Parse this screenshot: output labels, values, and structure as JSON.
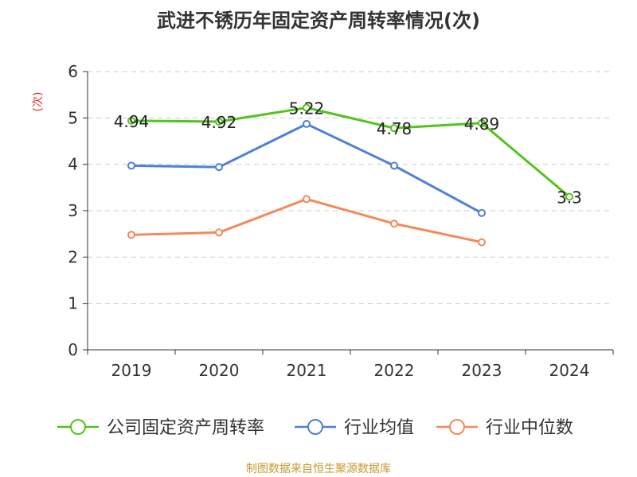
{
  "chart_data": {
    "type": "line",
    "title": "武进不锈历年固定资产周转率情况(次)",
    "ylabel": "(次)",
    "categories": [
      "2019",
      "2020",
      "2021",
      "2022",
      "2023",
      "2024"
    ],
    "ylim": [
      0,
      6
    ],
    "yticks": [
      "0",
      "1",
      "2",
      "3",
      "4",
      "5",
      "6"
    ],
    "grid": true,
    "legend_position": "bottom",
    "series": [
      {
        "name": "公司固定资产周转率",
        "color": "#52c41a",
        "values": [
          4.94,
          4.92,
          5.22,
          4.78,
          4.89,
          3.3
        ],
        "labels": [
          "4.94",
          "4.92",
          "5.22",
          "4.78",
          "4.89",
          "3.3"
        ]
      },
      {
        "name": "行业均值",
        "color": "#4e7fd9",
        "values": [
          3.97,
          3.94,
          4.87,
          3.97,
          2.95,
          null
        ]
      },
      {
        "name": "行业中位数",
        "color": "#f4895b",
        "values": [
          2.48,
          2.53,
          3.25,
          2.72,
          2.32,
          null
        ]
      }
    ]
  },
  "source": "制图数据来自恒生聚源数据库"
}
